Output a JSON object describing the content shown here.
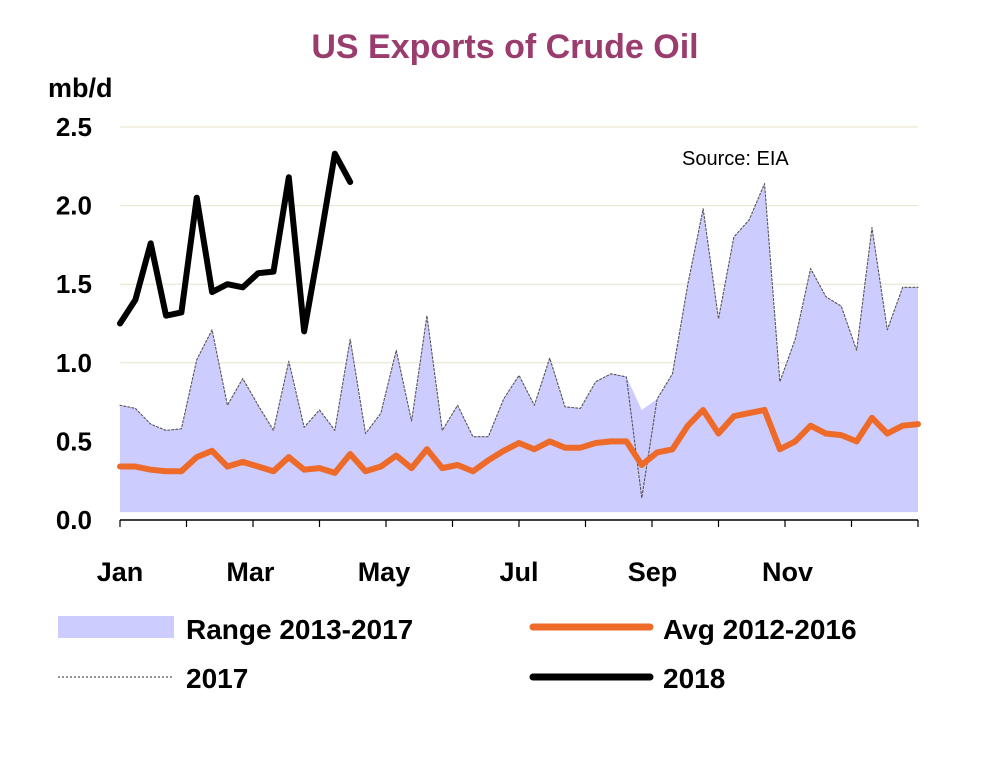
{
  "chart_data": {
    "type": "line",
    "title": "US Exports of Crude Oil",
    "ylabel": "mb/d",
    "ylim": [
      0,
      2.5
    ],
    "yticks": [
      "0.0",
      "0.5",
      "1.0",
      "1.5",
      "2.0",
      "2.5"
    ],
    "xlim": [
      0,
      52
    ],
    "xticks": [
      {
        "label": "Jan",
        "x": 0
      },
      {
        "label": "Mar",
        "x": 8.5
      },
      {
        "label": "May",
        "x": 17.2
      },
      {
        "label": "Jul",
        "x": 26
      },
      {
        "label": "Sep",
        "x": 34.7
      },
      {
        "label": "Nov",
        "x": 43.5
      }
    ],
    "grid": true,
    "annotation": "Source: EIA",
    "series": [
      {
        "name": "Range 2013-2017",
        "kind": "area",
        "color": "#ccccff",
        "x": [
          0,
          1,
          2,
          3,
          4,
          5,
          6,
          7,
          8,
          9,
          10,
          11,
          12,
          13,
          14,
          15,
          16,
          17,
          18,
          19,
          20,
          21,
          22,
          23,
          24,
          25,
          26,
          27,
          28,
          29,
          30,
          31,
          32,
          33,
          34,
          35,
          36,
          37,
          38,
          39,
          40,
          41,
          42,
          43,
          44,
          45,
          46,
          47,
          48,
          49,
          50,
          51,
          52
        ],
        "low": [
          0.05,
          0.05,
          0.05,
          0.05,
          0.05,
          0.05,
          0.05,
          0.05,
          0.05,
          0.05,
          0.05,
          0.05,
          0.05,
          0.05,
          0.05,
          0.05,
          0.05,
          0.05,
          0.05,
          0.05,
          0.05,
          0.05,
          0.05,
          0.05,
          0.05,
          0.05,
          0.05,
          0.05,
          0.05,
          0.05,
          0.05,
          0.05,
          0.05,
          0.05,
          0.05,
          0.05,
          0.05,
          0.05,
          0.05,
          0.05,
          0.05,
          0.05,
          0.05,
          0.05,
          0.05,
          0.05,
          0.05,
          0.05,
          0.05,
          0.05,
          0.05,
          0.05,
          0.05
        ],
        "high": [
          0.73,
          0.71,
          0.61,
          0.57,
          0.58,
          1.02,
          1.21,
          0.73,
          0.9,
          0.73,
          0.57,
          1.01,
          0.59,
          0.7,
          0.57,
          1.15,
          0.55,
          0.68,
          1.08,
          0.63,
          1.3,
          0.57,
          0.73,
          0.53,
          0.53,
          0.77,
          0.92,
          0.73,
          1.03,
          0.72,
          0.71,
          0.88,
          0.93,
          0.91,
          0.7,
          0.77,
          0.93,
          1.5,
          1.98,
          1.28,
          1.8,
          1.91,
          2.14,
          0.88,
          1.15,
          1.6,
          1.42,
          1.36,
          1.08,
          1.86,
          1.21,
          1.48,
          1.48
        ]
      },
      {
        "name": "Avg 2012-2016",
        "kind": "line",
        "color": "#ee6a28",
        "x": [
          0,
          1,
          2,
          3,
          4,
          5,
          6,
          7,
          8,
          9,
          10,
          11,
          12,
          13,
          14,
          15,
          16,
          17,
          18,
          19,
          20,
          21,
          22,
          23,
          24,
          25,
          26,
          27,
          28,
          29,
          30,
          31,
          32,
          33,
          34,
          35,
          36,
          37,
          38,
          39,
          40,
          41,
          42,
          43,
          44,
          45,
          46,
          47,
          48,
          49,
          50,
          51,
          52
        ],
        "values": [
          0.34,
          0.34,
          0.32,
          0.31,
          0.31,
          0.4,
          0.44,
          0.34,
          0.37,
          0.34,
          0.31,
          0.4,
          0.32,
          0.33,
          0.3,
          0.42,
          0.31,
          0.34,
          0.41,
          0.33,
          0.45,
          0.33,
          0.35,
          0.31,
          0.38,
          0.44,
          0.49,
          0.45,
          0.5,
          0.46,
          0.46,
          0.49,
          0.5,
          0.5,
          0.35,
          0.43,
          0.45,
          0.6,
          0.7,
          0.55,
          0.66,
          0.68,
          0.7,
          0.45,
          0.5,
          0.6,
          0.55,
          0.54,
          0.5,
          0.65,
          0.55,
          0.6,
          0.61
        ]
      },
      {
        "name": "2017",
        "kind": "line-dotted",
        "color": "#555555",
        "x": [
          0,
          1,
          2,
          3,
          4,
          5,
          6,
          7,
          8,
          9,
          10,
          11,
          12,
          13,
          14,
          15,
          16,
          17,
          18,
          19,
          20,
          21,
          22,
          23,
          24,
          25,
          26,
          27,
          28,
          29,
          30,
          31,
          32,
          33,
          34,
          35,
          36,
          37,
          38,
          39,
          40,
          41,
          42,
          43,
          44,
          45,
          46,
          47,
          48,
          49,
          50,
          51,
          52
        ],
        "values": [
          0.73,
          0.71,
          0.61,
          0.57,
          0.58,
          1.02,
          1.21,
          0.73,
          0.9,
          0.73,
          0.57,
          1.01,
          0.59,
          0.7,
          0.57,
          1.15,
          0.55,
          0.68,
          1.08,
          0.63,
          1.3,
          0.57,
          0.73,
          0.53,
          0.53,
          0.77,
          0.92,
          0.73,
          1.03,
          0.72,
          0.71,
          0.88,
          0.93,
          0.91,
          0.14,
          0.77,
          0.93,
          1.5,
          1.98,
          1.28,
          1.8,
          1.91,
          2.14,
          0.88,
          1.15,
          1.6,
          1.42,
          1.36,
          1.08,
          1.86,
          1.21,
          1.48,
          1.48
        ]
      },
      {
        "name": "2018",
        "kind": "line",
        "color": "#000000",
        "x": [
          0,
          1,
          2,
          3,
          4,
          5,
          6,
          7,
          8,
          9,
          10,
          11,
          12,
          13,
          14,
          15
        ],
        "values": [
          1.25,
          1.4,
          1.76,
          1.3,
          1.32,
          2.05,
          1.45,
          1.5,
          1.48,
          1.57,
          1.58,
          2.18,
          1.2,
          1.75,
          2.33,
          2.15
        ]
      }
    ],
    "legend": {
      "placement": "bottom",
      "columns": 2
    }
  },
  "colors": {
    "title": "#9b3c6e",
    "grid": "#e6e3c9",
    "axis": "#000000"
  }
}
